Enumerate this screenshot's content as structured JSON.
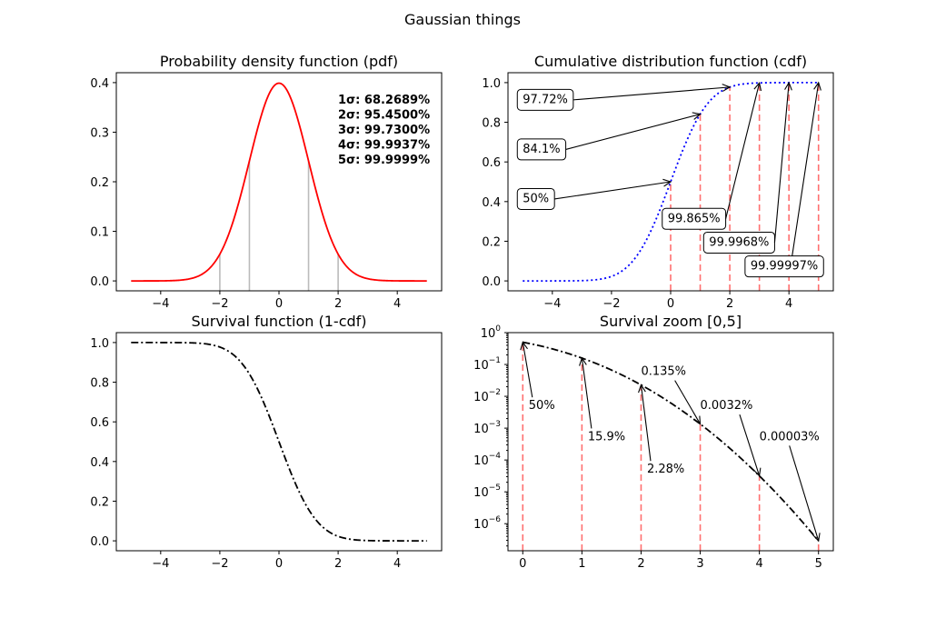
{
  "figure": {
    "title": "Gaussian things"
  },
  "chart_data": [
    {
      "id": "pdf",
      "type": "line",
      "title": "Probability density function (pdf)",
      "xlabel": "",
      "ylabel": "",
      "xlim": [
        -5.5,
        5.5
      ],
      "ylim": [
        -0.02,
        0.42
      ],
      "xticks": [
        -4,
        -2,
        0,
        2,
        4
      ],
      "xtick_labels": [
        "−4",
        "−2",
        "0",
        "2",
        "4"
      ],
      "yticks": [
        0.0,
        0.1,
        0.2,
        0.3,
        0.4
      ],
      "ytick_labels": [
        "0.0",
        "0.1",
        "0.2",
        "0.3",
        "0.4"
      ],
      "series": [
        {
          "function": "normal_pdf",
          "x_range": [
            -5,
            5
          ],
          "color": "#ff0000",
          "style": "solid"
        }
      ],
      "vertical_lines": {
        "x": [
          -2,
          -1,
          1,
          2
        ],
        "color": "#bbbbbb"
      },
      "text_block": [
        "1σ: 68.2689%",
        "2σ: 95.4500%",
        "3σ: 99.7300%",
        "4σ: 99.9937%",
        "5σ: 99.9999%"
      ]
    },
    {
      "id": "cdf",
      "type": "line",
      "title": "Cumulative distribution function (cdf)",
      "xlabel": "",
      "ylabel": "",
      "xlim": [
        -5.5,
        5.5
      ],
      "ylim": [
        -0.05,
        1.05
      ],
      "xticks": [
        -4,
        -2,
        0,
        2,
        4
      ],
      "xtick_labels": [
        "−4",
        "−2",
        "0",
        "2",
        "4"
      ],
      "yticks": [
        0.0,
        0.2,
        0.4,
        0.6,
        0.8,
        1.0
      ],
      "ytick_labels": [
        "0.0",
        "0.2",
        "0.4",
        "0.6",
        "0.8",
        "1.0"
      ],
      "series": [
        {
          "function": "normal_cdf",
          "x_range": [
            -5,
            5
          ],
          "color": "#0000ff",
          "style": "dotted"
        }
      ],
      "vertical_lines": {
        "x": [
          0,
          1,
          2,
          3,
          4,
          5
        ],
        "color": "#ff7070",
        "style": "dashed",
        "to_curve": true
      },
      "annotations": [
        {
          "text": "97.72%",
          "point": [
            2,
            0.9772
          ],
          "label_at": [
            -5,
            0.92
          ],
          "boxed": true
        },
        {
          "text": "84.1%",
          "point": [
            1,
            0.841
          ],
          "label_at": [
            -5,
            0.67
          ],
          "boxed": true
        },
        {
          "text": "50%",
          "point": [
            0,
            0.5
          ],
          "label_at": [
            -5,
            0.42
          ],
          "boxed": true
        },
        {
          "text": "99.865%",
          "point": [
            3,
            0.99865
          ],
          "label_at": [
            -0.1,
            0.32
          ],
          "boxed": true
        },
        {
          "text": "99.9968%",
          "point": [
            4,
            0.999968
          ],
          "label_at": [
            1.3,
            0.2
          ],
          "boxed": true
        },
        {
          "text": "99.99997%",
          "point": [
            5,
            0.9999997
          ],
          "label_at": [
            2.7,
            0.08
          ],
          "boxed": true
        }
      ]
    },
    {
      "id": "survival",
      "type": "line",
      "title": "Survival function (1-cdf)",
      "xlabel": "",
      "ylabel": "",
      "xlim": [
        -5.5,
        5.5
      ],
      "ylim": [
        -0.05,
        1.05
      ],
      "xticks": [
        -4,
        -2,
        0,
        2,
        4
      ],
      "xtick_labels": [
        "−4",
        "−2",
        "0",
        "2",
        "4"
      ],
      "yticks": [
        0.0,
        0.2,
        0.4,
        0.6,
        0.8,
        1.0
      ],
      "ytick_labels": [
        "0.0",
        "0.2",
        "0.4",
        "0.6",
        "0.8",
        "1.0"
      ],
      "series": [
        {
          "function": "normal_survival",
          "x_range": [
            -5,
            5
          ],
          "color": "#000000",
          "style": "dashdot"
        }
      ]
    },
    {
      "id": "survival_zoom",
      "type": "line",
      "title": "Survival zoom [0,5]",
      "xlabel": "",
      "ylabel": "",
      "xscale": "linear",
      "yscale": "log",
      "xlim": [
        -0.25,
        5.25
      ],
      "ylim_log10": [
        -6.85,
        0
      ],
      "xticks": [
        0,
        1,
        2,
        3,
        4,
        5
      ],
      "xtick_labels": [
        "0",
        "1",
        "2",
        "3",
        "4",
        "5"
      ],
      "yticks_log10": [
        -6,
        -5,
        -4,
        -3,
        -2,
        -1,
        0
      ],
      "ytick_labels": [
        "10",
        "10",
        "10",
        "10",
        "10",
        "10",
        "10"
      ],
      "ytick_exponents": [
        "−6",
        "−5",
        "−4",
        "−3",
        "−2",
        "−1",
        "0"
      ],
      "series": [
        {
          "function": "normal_survival",
          "x_range": [
            0,
            5
          ],
          "color": "#000000",
          "style": "dashdot"
        }
      ],
      "vertical_lines": {
        "x": [
          0,
          1,
          2,
          3,
          4,
          5
        ],
        "color": "#ff7070",
        "style": "dashed",
        "to_curve": true
      },
      "annotations": [
        {
          "text": "50%",
          "point": [
            0,
            0.5
          ],
          "label_at": [
            0.1,
            0.0055
          ]
        },
        {
          "text": "15.9%",
          "point": [
            1,
            0.159
          ],
          "label_at": [
            1.1,
            0.00058
          ]
        },
        {
          "text": "2.28%",
          "point": [
            2,
            0.0228
          ],
          "label_at": [
            2.1,
            5.5e-05
          ]
        },
        {
          "text": "0.135%",
          "point": [
            3,
            0.00135
          ],
          "label_at": [
            2.0,
            0.065
          ]
        },
        {
          "text": "0.0032%",
          "point": [
            4,
            3.17e-05
          ],
          "label_at": [
            3.0,
            0.0055
          ]
        },
        {
          "text": "0.00003%",
          "point": [
            5,
            2.87e-07
          ],
          "label_at": [
            4.0,
            0.00058
          ]
        }
      ]
    }
  ]
}
